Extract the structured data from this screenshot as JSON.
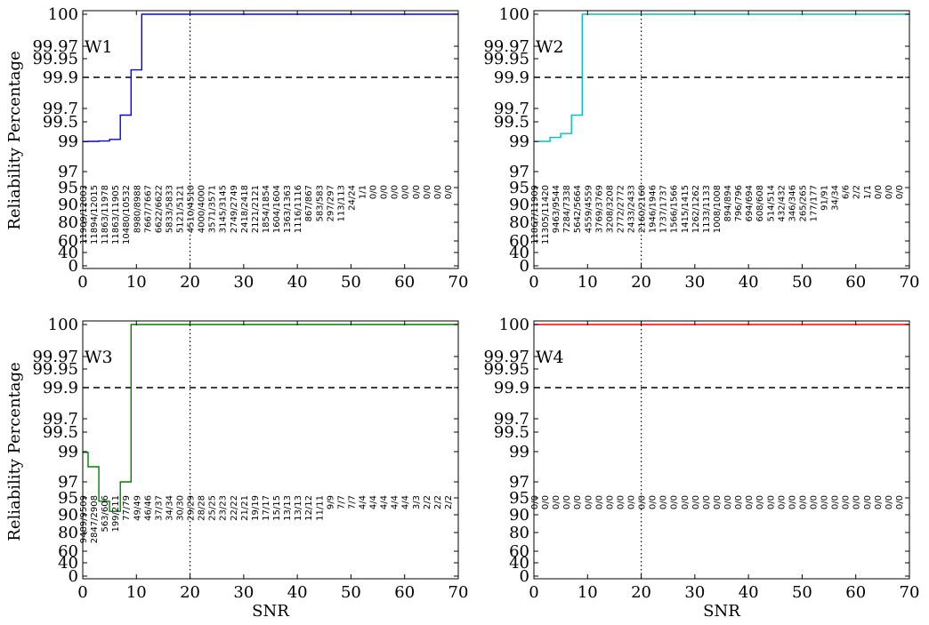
{
  "figure": {
    "ylabel": "Reliability Percentage",
    "xlabel": "SNR"
  },
  "chart_data": [
    {
      "type": "line",
      "panel_label": "W1",
      "color": "#0000ff",
      "xlim": [
        0,
        70
      ],
      "xticks": [
        "0",
        "10",
        "20",
        "30",
        "40",
        "50",
        "60",
        "70"
      ],
      "yticks": [
        "100",
        "99.97",
        "99.95",
        "99.9",
        "99.7",
        "99.5",
        "99",
        "97",
        "95",
        "90",
        "80",
        "60",
        "40",
        "0"
      ],
      "reference_lines": {
        "threshold": 99.9,
        "snr": 20
      },
      "series": [
        {
          "x": [
            0,
            1,
            3,
            5,
            7,
            9,
            11,
            70
          ],
          "y": [
            98.98,
            99.0,
            99.01,
            99.05,
            99.6,
            99.92,
            100,
            100
          ]
        }
      ],
      "counts": [
        "11909/12003",
        "11894/12015",
        "11863/11978",
        "11863/11905",
        "10480/10532",
        "8980/8988",
        "7667/7667",
        "6622/6622",
        "5833/5833",
        "5121/5121",
        "4510/4510",
        "4000/4000",
        "3571/3571",
        "3145/3145",
        "2749/2749",
        "2418/2418",
        "2121/2121",
        "1854/1854",
        "1604/1604",
        "1363/1363",
        "1116/1116",
        "867/867",
        "583/583",
        "297/297",
        "113/113",
        "24/24",
        "1/1",
        "0/0",
        "0/0",
        "0/0",
        "0/0",
        "0/0",
        "0/0",
        "0/0",
        "0/0"
      ]
    },
    {
      "type": "line",
      "panel_label": "W2",
      "color": "#00bfbf",
      "xlim": [
        0,
        70
      ],
      "xticks": [
        "0",
        "10",
        "20",
        "30",
        "40",
        "50",
        "60",
        "70"
      ],
      "yticks": [
        "100",
        "99.97",
        "99.95",
        "99.9",
        "99.7",
        "99.5",
        "99",
        "97",
        "95",
        "90",
        "80",
        "60",
        "40",
        "0"
      ],
      "reference_lines": {
        "threshold": 99.9,
        "snr": 20
      },
      "series": [
        {
          "x": [
            0,
            1,
            3,
            5,
            7,
            9,
            70
          ],
          "y": [
            98.98,
            99.0,
            99.1,
            99.2,
            99.6,
            100,
            100
          ]
        }
      ],
      "counts": [
        "11867/11909",
        "11305/11420",
        "9463/9544",
        "7284/7338",
        "5642/5664",
        "4559/4559",
        "3769/3769",
        "3208/3208",
        "2772/2772",
        "2433/2433",
        "2160/2160",
        "1946/1946",
        "1737/1737",
        "1566/1566",
        "1415/1415",
        "1262/1262",
        "1133/1133",
        "1008/1008",
        "894/894",
        "796/796",
        "694/694",
        "608/608",
        "514/514",
        "432/432",
        "346/346",
        "265/265",
        "177/177",
        "91/91",
        "34/34",
        "6/6",
        "2/2",
        "1/1",
        "0/0",
        "0/0",
        "0/0"
      ]
    },
    {
      "type": "line",
      "panel_label": "W3",
      "color": "#008000",
      "xlim": [
        0,
        70
      ],
      "xticks": [
        "0",
        "10",
        "20",
        "30",
        "40",
        "50",
        "60",
        "70"
      ],
      "yticks": [
        "100",
        "99.97",
        "99.95",
        "99.9",
        "99.7",
        "99.5",
        "99",
        "97",
        "95",
        "90",
        "80",
        "60",
        "40",
        "0"
      ],
      "reference_lines": {
        "threshold": 99.9,
        "snr": 20
      },
      "series": [
        {
          "x": [
            0,
            1,
            3,
            5,
            7,
            9,
            70
          ],
          "y": [
            98.95,
            98.0,
            94.0,
            91.0,
            97.0,
            100,
            100
          ]
        }
      ],
      "counts": [
        "9489/9509",
        "2847/2908",
        "563/606",
        "199/211",
        "77/79",
        "49/49",
        "46/46",
        "37/37",
        "34/34",
        "30/30",
        "29/29",
        "28/28",
        "25/25",
        "23/23",
        "22/22",
        "21/21",
        "19/19",
        "17/17",
        "15/15",
        "13/13",
        "13/13",
        "12/12",
        "11/11",
        "9/9",
        "7/7",
        "7/7",
        "4/4",
        "4/4",
        "4/4",
        "4/4",
        "4/4",
        "3/3",
        "2/2",
        "2/2",
        "2/2"
      ]
    },
    {
      "type": "line",
      "panel_label": "W4",
      "color": "#ff0000",
      "xlim": [
        0,
        70
      ],
      "xticks": [
        "0",
        "10",
        "20",
        "30",
        "40",
        "50",
        "60",
        "70"
      ],
      "yticks": [
        "100",
        "99.97",
        "99.95",
        "99.9",
        "99.7",
        "99.5",
        "99",
        "97",
        "95",
        "90",
        "80",
        "60",
        "40",
        "0"
      ],
      "reference_lines": {
        "threshold": 99.9,
        "snr": 20
      },
      "series": [
        {
          "x": [
            0,
            70
          ],
          "y": [
            100,
            100
          ]
        }
      ],
      "counts": [
        "0/0",
        "0/0",
        "0/0",
        "0/0",
        "0/0",
        "0/0",
        "0/0",
        "0/0",
        "0/0",
        "0/0",
        "0/0",
        "0/0",
        "0/0",
        "0/0",
        "0/0",
        "0/0",
        "0/0",
        "0/0",
        "0/0",
        "0/0",
        "0/0",
        "0/0",
        "0/0",
        "0/0",
        "0/0",
        "0/0",
        "0/0",
        "0/0",
        "0/0",
        "0/0",
        "0/0",
        "0/0",
        "0/0",
        "0/0",
        "0/0"
      ]
    }
  ]
}
